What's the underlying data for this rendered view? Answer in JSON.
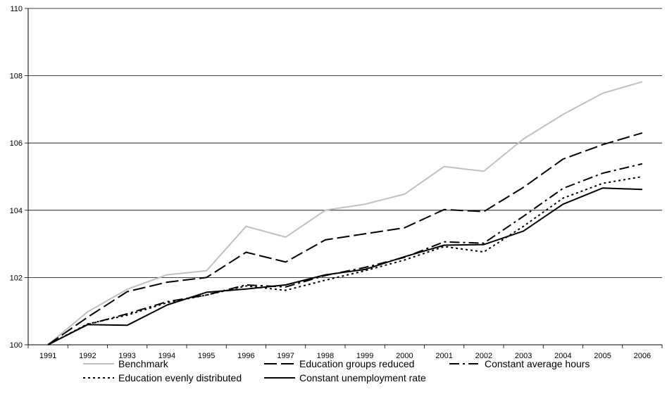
{
  "chart_data": {
    "type": "line",
    "title": "",
    "xlabel": "",
    "ylabel": "",
    "categories": [
      "1991",
      "1992",
      "1993",
      "1994",
      "1995",
      "1996",
      "1997",
      "1998",
      "1999",
      "2000",
      "2001",
      "2002",
      "2003",
      "2004",
      "2005",
      "2006"
    ],
    "ylim": [
      100,
      110
    ],
    "yticks": [
      "100",
      "102",
      "104",
      "106",
      "108",
      "110"
    ],
    "grid": "horizontal",
    "legend_position": "bottom",
    "series": [
      {
        "name": "Benchmark",
        "color": "#c0c0c0",
        "dash": "solid",
        "values": [
          100.0,
          100.98,
          101.65,
          102.08,
          102.2,
          103.52,
          103.2,
          104.0,
          104.18,
          104.48,
          105.3,
          105.16,
          106.12,
          106.85,
          107.48,
          107.82
        ]
      },
      {
        "name": "Education groups reduced",
        "color": "#000000",
        "dash": "long-dash",
        "values": [
          100.0,
          100.82,
          101.58,
          101.86,
          102.0,
          102.75,
          102.46,
          103.12,
          103.3,
          103.48,
          104.02,
          103.96,
          104.68,
          105.52,
          105.95,
          106.3
        ]
      },
      {
        "name": "Constant average hours",
        "color": "#000000",
        "dash": "dash-dot",
        "values": [
          100.0,
          100.6,
          100.92,
          101.28,
          101.48,
          101.78,
          101.72,
          102.06,
          102.3,
          102.6,
          103.06,
          103.02,
          103.82,
          104.65,
          105.1,
          105.38
        ]
      },
      {
        "name": "Education evenly distributed",
        "color": "#000000",
        "dash": "dotted",
        "values": [
          100.0,
          100.62,
          100.88,
          101.25,
          101.48,
          101.75,
          101.62,
          101.92,
          102.2,
          102.52,
          102.92,
          102.76,
          103.52,
          104.36,
          104.8,
          105.0
        ]
      },
      {
        "name": "Constant unemployment rate",
        "color": "#000000",
        "dash": "solid",
        "values": [
          100.0,
          100.6,
          100.58,
          101.18,
          101.56,
          101.66,
          101.78,
          102.08,
          102.24,
          102.62,
          102.96,
          102.98,
          103.38,
          104.18,
          104.66,
          104.62
        ]
      }
    ]
  }
}
